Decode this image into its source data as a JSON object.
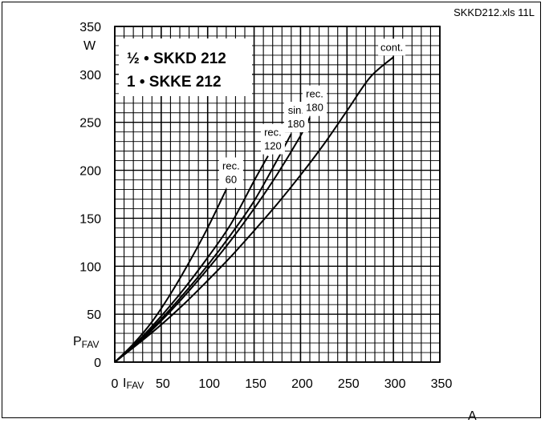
{
  "file_tag": "SKKD212.xls 11L",
  "chart_data": {
    "type": "line",
    "title_lines": [
      "½ • SKKD 212",
      "1 • SKKE 212"
    ],
    "ylabel_unit": "W",
    "ylabel_symbol": "P",
    "ylabel_subscript": "FAV",
    "xlabel_symbol": "I",
    "xlabel_subscript": "FAV",
    "xlabel_unit": "A",
    "xlim": [
      0,
      350
    ],
    "ylim": [
      0,
      350
    ],
    "x_ticks": [
      0,
      50,
      100,
      150,
      200,
      250,
      300,
      350
    ],
    "y_ticks": [
      0,
      50,
      100,
      150,
      200,
      250,
      300,
      350
    ],
    "grid": true,
    "series": [
      {
        "name_lines": [
          "rec.",
          "60"
        ],
        "x": [
          0,
          20,
          40,
          60,
          80,
          100,
          120
        ],
        "y": [
          0,
          19,
          42,
          71,
          104,
          140,
          180
        ]
      },
      {
        "name_lines": [
          "rec.",
          "120"
        ],
        "x": [
          0,
          25,
          50,
          75,
          100,
          125,
          150,
          165
        ],
        "y": [
          0,
          22,
          48,
          77,
          109,
          144,
          189,
          215
        ]
      },
      {
        "name_lines": [
          "sin.",
          "180"
        ],
        "x": [
          0,
          25,
          50,
          75,
          100,
          125,
          150,
          175,
          190
        ],
        "y": [
          0,
          21,
          45,
          72,
          101,
          133,
          168,
          211,
          238
        ]
      },
      {
        "name_lines": [
          "rec.",
          "180"
        ],
        "x": [
          0,
          25,
          50,
          75,
          100,
          125,
          150,
          175,
          200,
          210
        ],
        "y": [
          0,
          20,
          43,
          69,
          97,
          127,
          160,
          196,
          236,
          255
        ]
      },
      {
        "name_lines": [
          "cont."
        ],
        "x": [
          0,
          25,
          50,
          75,
          100,
          125,
          150,
          175,
          200,
          225,
          250,
          275,
          300
        ],
        "y": [
          0,
          19,
          39,
          61,
          85,
          110,
          137,
          165,
          195,
          227,
          262,
          297,
          318
        ]
      }
    ]
  }
}
